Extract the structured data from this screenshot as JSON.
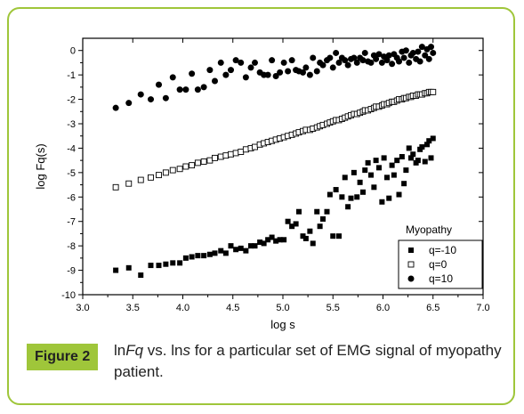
{
  "figure": {
    "label": "Figure 2",
    "caption_parts": [
      "ln",
      "Fq",
      " vs.  ln",
      "s",
      " for a particular set of EMG signal of myopathy patient."
    ]
  },
  "colors": {
    "border": "#9fc63a",
    "label_bg": "#9fc63a",
    "ink": "#000000"
  },
  "chart_data": {
    "type": "scatter",
    "xlabel": "log s",
    "ylabel": "log Fq(s)",
    "xlim": [
      3.0,
      7.0
    ],
    "ylim": [
      -10,
      0.5
    ],
    "xticks": [
      3.0,
      3.5,
      4.0,
      4.5,
      5.0,
      5.5,
      6.0,
      6.5,
      7.0
    ],
    "xtick_labels": [
      "3.0",
      "3.5",
      "4.0",
      "4.5",
      "5.0",
      "5.5",
      "6.0",
      "6.5",
      "7.0"
    ],
    "yticks": [
      0,
      -1,
      -2,
      -3,
      -4,
      -5,
      -6,
      -7,
      -8,
      -9,
      -10
    ],
    "ytick_labels": [
      "0",
      "-1",
      "-2",
      "-3",
      "-4",
      "-5",
      "-6",
      "-7",
      "-8",
      "-9",
      "-10"
    ],
    "legend": {
      "title": "Myopathy",
      "position": "bottom-right"
    },
    "series": [
      {
        "name": "q=-10",
        "marker": "filled-square",
        "x": [
          3.33,
          3.46,
          3.58,
          3.68,
          3.76,
          3.83,
          3.9,
          3.97,
          4.03,
          4.09,
          4.15,
          4.21,
          4.27,
          4.32,
          4.38,
          4.43,
          4.48,
          4.53,
          4.58,
          4.63,
          4.68,
          4.72,
          4.77,
          4.81,
          4.85,
          4.89,
          4.93,
          4.97,
          5.01,
          5.05,
          5.09,
          5.13,
          5.16,
          5.2,
          5.23,
          5.27,
          5.3,
          5.34,
          5.37,
          5.4,
          5.44,
          5.47,
          5.5,
          5.53,
          5.56,
          5.59,
          5.62,
          5.65,
          5.68,
          5.71,
          5.74,
          5.77,
          5.8,
          5.82,
          5.85,
          5.88,
          5.91,
          5.93,
          5.96,
          5.99,
          6.01,
          6.04,
          6.06,
          6.09,
          6.11,
          6.14,
          6.16,
          6.19,
          6.21,
          6.23,
          6.26,
          6.28,
          6.3,
          6.33,
          6.35,
          6.37,
          6.39,
          6.42,
          6.44,
          6.46,
          6.48,
          6.5
        ],
        "y": [
          -9.0,
          -8.9,
          -9.2,
          -8.8,
          -8.8,
          -8.75,
          -8.7,
          -8.7,
          -8.5,
          -8.45,
          -8.4,
          -8.4,
          -8.35,
          -8.3,
          -8.2,
          -8.3,
          -8.0,
          -8.15,
          -8.1,
          -8.2,
          -8.0,
          -8.0,
          -7.85,
          -7.9,
          -7.75,
          -7.65,
          -7.8,
          -7.75,
          -7.75,
          -7.0,
          -7.2,
          -7.1,
          -6.6,
          -7.6,
          -7.7,
          -7.4,
          -7.9,
          -6.6,
          -7.2,
          -6.9,
          -6.6,
          -5.9,
          -7.6,
          -5.7,
          -7.6,
          -6.0,
          -5.2,
          -6.4,
          -6.05,
          -5.0,
          -6.0,
          -5.4,
          -5.8,
          -4.9,
          -4.6,
          -5.1,
          -5.6,
          -4.5,
          -4.8,
          -6.2,
          -4.4,
          -5.2,
          -6.05,
          -4.7,
          -5.1,
          -4.5,
          -5.9,
          -4.35,
          -5.45,
          -4.9,
          -4.0,
          -4.4,
          -4.25,
          -4.6,
          -4.5,
          -4.05,
          -3.95,
          -4.55,
          -3.85,
          -3.7,
          -4.4,
          -3.6
        ]
      },
      {
        "name": "q=0",
        "marker": "open-square",
        "x": [
          3.33,
          3.46,
          3.58,
          3.68,
          3.76,
          3.83,
          3.9,
          3.97,
          4.03,
          4.09,
          4.15,
          4.21,
          4.27,
          4.32,
          4.38,
          4.43,
          4.48,
          4.53,
          4.58,
          4.63,
          4.68,
          4.72,
          4.77,
          4.81,
          4.85,
          4.89,
          4.93,
          4.97,
          5.01,
          5.05,
          5.09,
          5.13,
          5.16,
          5.2,
          5.23,
          5.27,
          5.3,
          5.34,
          5.37,
          5.4,
          5.44,
          5.47,
          5.5,
          5.53,
          5.56,
          5.59,
          5.62,
          5.65,
          5.68,
          5.71,
          5.74,
          5.77,
          5.8,
          5.82,
          5.85,
          5.88,
          5.91,
          5.93,
          5.96,
          5.99,
          6.01,
          6.04,
          6.06,
          6.09,
          6.11,
          6.14,
          6.16,
          6.19,
          6.21,
          6.23,
          6.26,
          6.28,
          6.3,
          6.33,
          6.35,
          6.37,
          6.39,
          6.42,
          6.44,
          6.46,
          6.48,
          6.5
        ],
        "y": [
          -5.6,
          -5.45,
          -5.3,
          -5.2,
          -5.1,
          -5.0,
          -4.9,
          -4.85,
          -4.75,
          -4.7,
          -4.6,
          -4.55,
          -4.5,
          -4.4,
          -4.35,
          -4.3,
          -4.25,
          -4.2,
          -4.15,
          -4.05,
          -4.0,
          -3.95,
          -3.85,
          -3.8,
          -3.75,
          -3.7,
          -3.65,
          -3.6,
          -3.55,
          -3.5,
          -3.45,
          -3.4,
          -3.35,
          -3.3,
          -3.25,
          -3.25,
          -3.2,
          -3.15,
          -3.1,
          -3.05,
          -3.0,
          -2.95,
          -2.9,
          -2.85,
          -2.85,
          -2.8,
          -2.75,
          -2.7,
          -2.65,
          -2.6,
          -2.6,
          -2.55,
          -2.5,
          -2.45,
          -2.45,
          -2.4,
          -2.35,
          -2.3,
          -2.3,
          -2.25,
          -2.2,
          -2.2,
          -2.15,
          -2.1,
          -2.1,
          -2.05,
          -2.0,
          -2.0,
          -1.95,
          -1.95,
          -1.9,
          -1.9,
          -1.85,
          -1.85,
          -1.8,
          -1.8,
          -1.8,
          -1.75,
          -1.75,
          -1.7,
          -1.7,
          -1.7
        ]
      },
      {
        "name": "q=10",
        "marker": "filled-circle",
        "x": [
          3.33,
          3.46,
          3.58,
          3.68,
          3.76,
          3.83,
          3.9,
          3.97,
          4.03,
          4.09,
          4.15,
          4.21,
          4.27,
          4.32,
          4.38,
          4.43,
          4.48,
          4.53,
          4.58,
          4.63,
          4.68,
          4.72,
          4.77,
          4.81,
          4.85,
          4.89,
          4.93,
          4.97,
          5.01,
          5.05,
          5.09,
          5.13,
          5.16,
          5.2,
          5.23,
          5.27,
          5.3,
          5.34,
          5.37,
          5.4,
          5.44,
          5.47,
          5.5,
          5.53,
          5.56,
          5.59,
          5.62,
          5.65,
          5.68,
          5.71,
          5.74,
          5.77,
          5.8,
          5.82,
          5.85,
          5.88,
          5.91,
          5.93,
          5.96,
          5.99,
          6.01,
          6.04,
          6.06,
          6.09,
          6.11,
          6.14,
          6.16,
          6.19,
          6.21,
          6.23,
          6.26,
          6.28,
          6.3,
          6.33,
          6.35,
          6.37,
          6.39,
          6.42,
          6.44,
          6.46,
          6.48,
          6.5
        ],
        "y": [
          -2.35,
          -2.15,
          -1.8,
          -2.0,
          -1.4,
          -1.95,
          -1.1,
          -1.6,
          -1.6,
          -0.95,
          -1.6,
          -1.5,
          -0.8,
          -1.25,
          -0.5,
          -1.0,
          -0.8,
          -0.4,
          -0.5,
          -1.1,
          -0.7,
          -0.5,
          -0.9,
          -1.0,
          -1.0,
          -0.4,
          -1.05,
          -0.9,
          -0.5,
          -0.85,
          -0.4,
          -0.8,
          -0.85,
          -0.9,
          -0.7,
          -1.0,
          -0.3,
          -0.85,
          -0.5,
          -0.6,
          -0.4,
          -0.3,
          -0.7,
          -0.1,
          -0.5,
          -0.3,
          -0.4,
          -0.6,
          -0.35,
          -0.3,
          -0.5,
          -0.3,
          -0.4,
          -0.1,
          -0.45,
          -0.5,
          -0.2,
          -0.35,
          -0.15,
          -0.5,
          -0.25,
          -0.4,
          -0.2,
          -0.55,
          -0.15,
          -0.3,
          -0.45,
          -0.05,
          -0.3,
          0.0,
          -0.5,
          -0.2,
          -0.1,
          -0.35,
          -0.05,
          -0.45,
          0.15,
          -0.2,
          0.05,
          -0.35,
          0.15,
          -0.1
        ]
      }
    ]
  }
}
